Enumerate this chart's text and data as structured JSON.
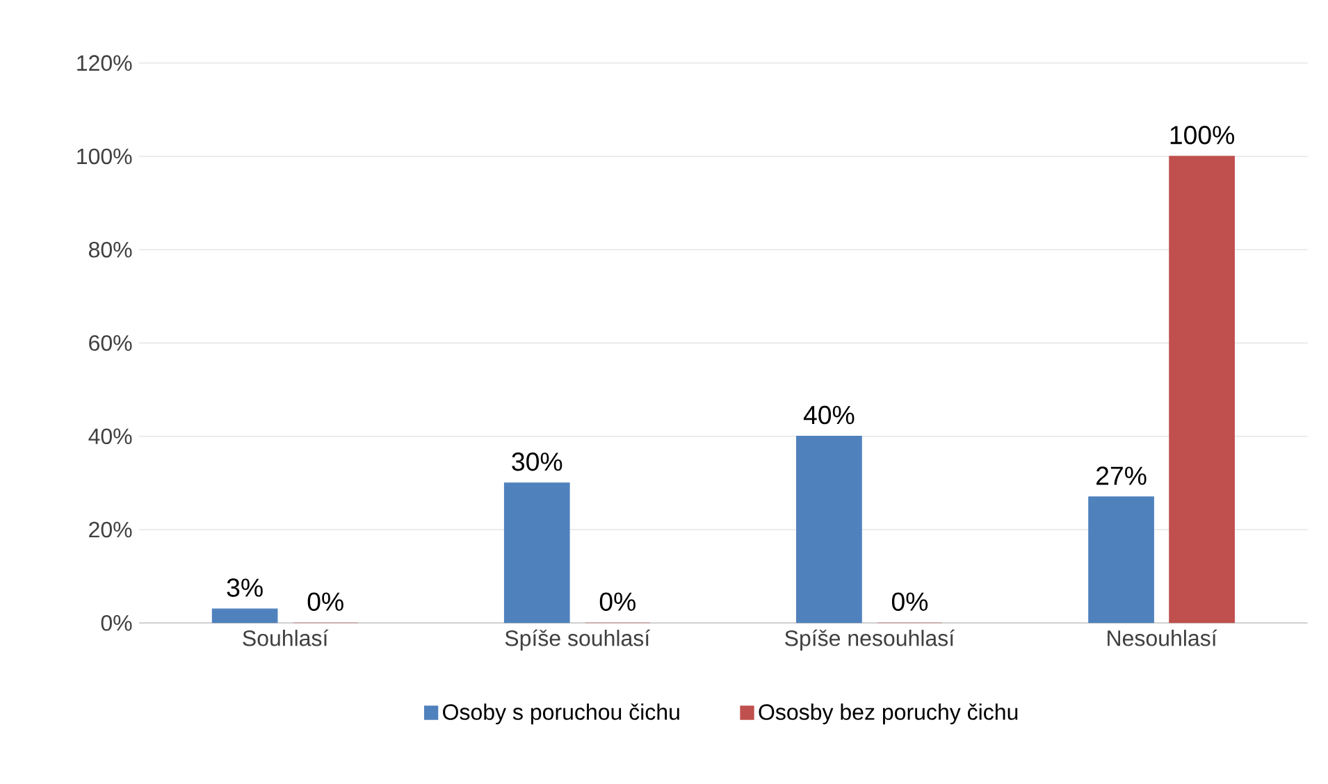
{
  "chart_data": {
    "type": "bar",
    "categories": [
      "Souhlasí",
      "Spíše souhlasí",
      "Spíše nesouhlasí",
      "Nesouhlasí"
    ],
    "series": [
      {
        "name": "Osoby s poruchou čichu",
        "color": "#4f81bd",
        "values": [
          3,
          30,
          40,
          27
        ],
        "value_labels": [
          "3%",
          "30%",
          "40%",
          "27%"
        ]
      },
      {
        "name": "Ososby bez poruchy čichu",
        "color": "#c0504d",
        "values": [
          0,
          0,
          0,
          100
        ],
        "value_labels": [
          "0%",
          "0%",
          "0%",
          "100%"
        ]
      }
    ],
    "ylim": [
      0,
      120
    ],
    "yticks": [
      {
        "value": 0,
        "label": "0%"
      },
      {
        "value": 20,
        "label": "20%"
      },
      {
        "value": 40,
        "label": "40%"
      },
      {
        "value": 60,
        "label": "60%"
      },
      {
        "value": 80,
        "label": "80%"
      },
      {
        "value": 100,
        "label": "100%"
      },
      {
        "value": 120,
        "label": "120%"
      }
    ],
    "grid": "y",
    "legend": "bottom"
  }
}
